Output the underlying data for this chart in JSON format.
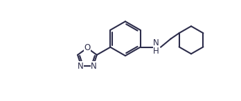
{
  "bg_color": "#ffffff",
  "bond_color": "#2c2c4a",
  "line_width": 1.5,
  "font_size": 8.5,
  "figsize": [
    3.48,
    1.47
  ],
  "dpi": 100,
  "xlim": [
    0,
    10
  ],
  "ylim": [
    0,
    4.2
  ]
}
